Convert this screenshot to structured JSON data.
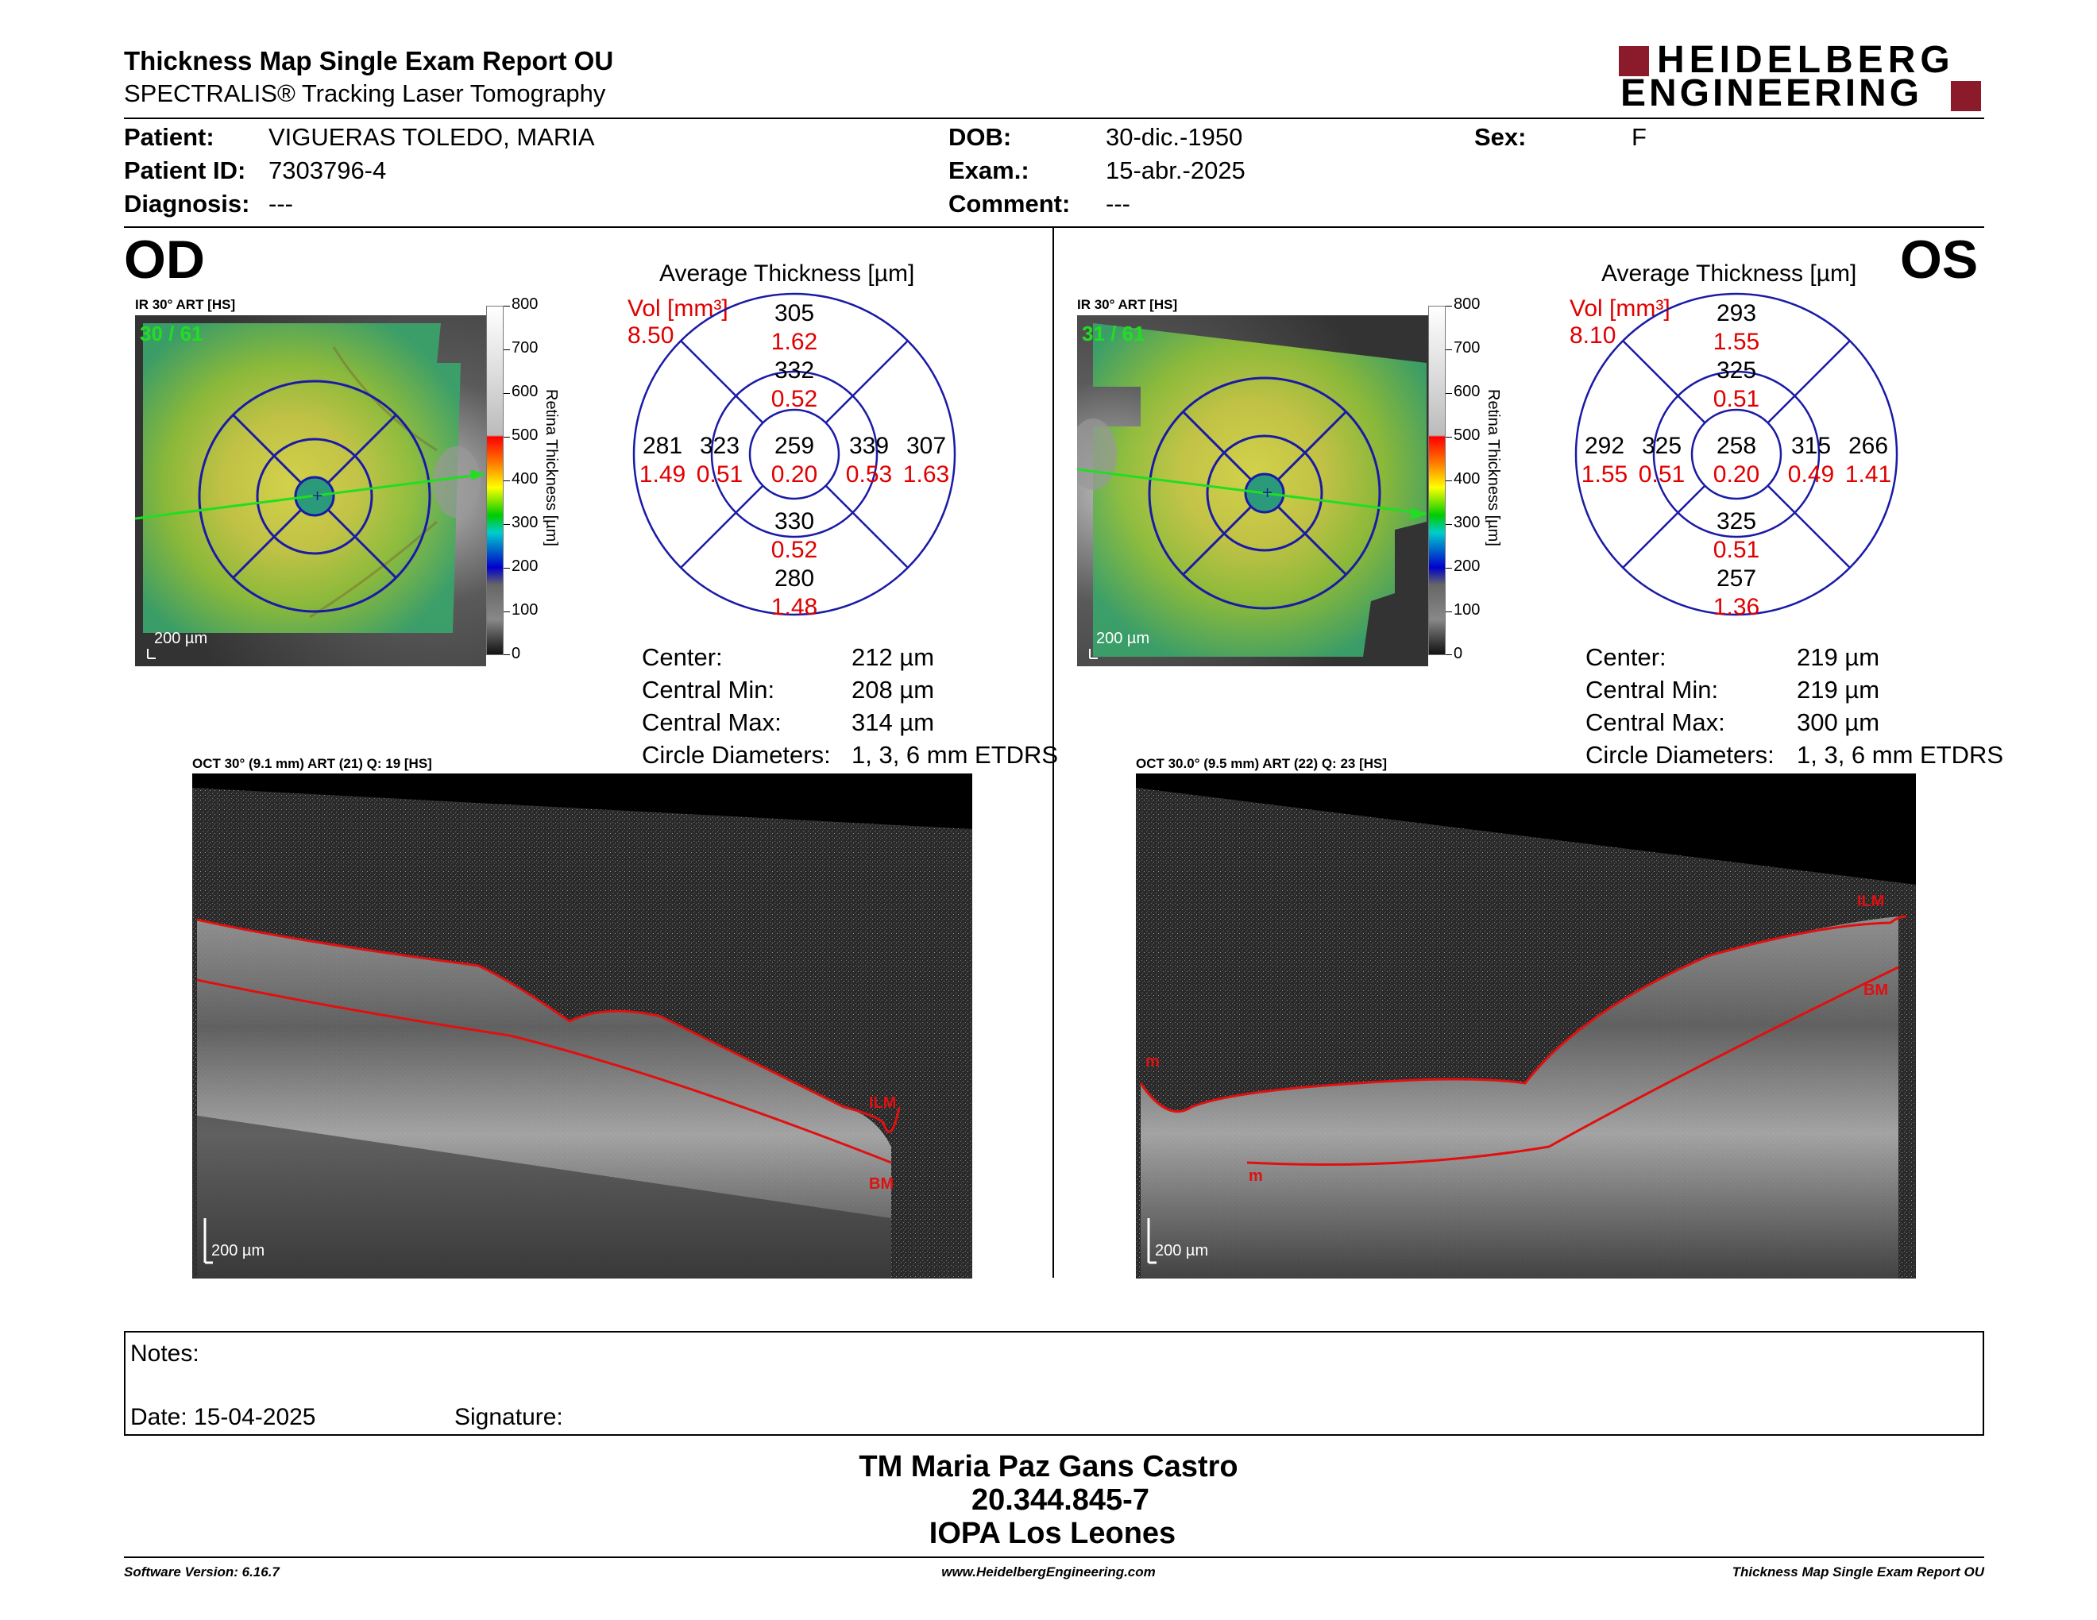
{
  "header": {
    "title": "Thickness Map Single Exam Report OU",
    "subtitle": "SPECTRALIS® Tracking Laser Tomography",
    "brand_line1": "HEIDELBERG",
    "brand_line2": "ENGINEERING",
    "brand_color": "#8b1a2b"
  },
  "patient": {
    "patient_label": "Patient:",
    "patient_value": "VIGUERAS TOLEDO, MARIA",
    "id_label": "Patient ID:",
    "id_value": "7303796-4",
    "diagnosis_label": "Diagnosis:",
    "diagnosis_value": "---",
    "dob_label": "DOB:",
    "dob_value": "30-dic.-1950",
    "exam_label": "Exam.:",
    "exam_value": "15-abr.-2025",
    "comment_label": "Comment:",
    "comment_value": "---",
    "sex_label": "Sex:",
    "sex_value": "F"
  },
  "od": {
    "eye": "OD",
    "fundus_caption": "IR 30° ART [HS]",
    "fundus_count": "30 / 61",
    "fundus_scale": "200 µm",
    "colorbar_ticks": [
      "800",
      "700",
      "600",
      "500",
      "400",
      "300",
      "200",
      "100",
      "0"
    ],
    "colorbar_label": "Retina Thickness [µm]",
    "avg_title": "Average Thickness [µm]",
    "vol_label": "Vol [mm³]",
    "vol_value": "8.50",
    "grid": {
      "outer_top": "305",
      "outer_top_vol": "1.62",
      "inner_top": "332",
      "inner_top_vol": "0.52",
      "outer_left": "281",
      "outer_left_vol": "1.49",
      "inner_left": "323",
      "inner_left_vol": "0.51",
      "center": "259",
      "center_vol": "0.20",
      "inner_right": "339",
      "inner_right_vol": "0.53",
      "outer_right": "307",
      "outer_right_vol": "1.63",
      "inner_bottom": "330",
      "inner_bottom_vol": "0.52",
      "outer_bottom": "280",
      "outer_bottom_vol": "1.48"
    },
    "center_label": "Center:",
    "center_value": "212 µm",
    "cmin_label": "Central Min:",
    "cmin_value": "208 µm",
    "cmax_label": "Central Max:",
    "cmax_value": "314 µm",
    "diam_label": "Circle Diameters:",
    "diam_value": "1, 3, 6 mm ETDRS",
    "oct_caption": "OCT 30° (9.1 mm) ART (21) Q: 19 [HS]",
    "oct_scale": "200 µm",
    "oct_ilm": "ILM",
    "oct_bm": "BM"
  },
  "os": {
    "eye": "OS",
    "fundus_caption": "IR 30° ART [HS]",
    "fundus_count": "31 / 61",
    "fundus_scale": "200 µm",
    "colorbar_ticks": [
      "800",
      "700",
      "600",
      "500",
      "400",
      "300",
      "200",
      "100",
      "0"
    ],
    "colorbar_label": "Retina Thickness [µm]",
    "avg_title": "Average Thickness [µm]",
    "vol_label": "Vol [mm³]",
    "vol_value": "8.10",
    "grid": {
      "outer_top": "293",
      "outer_top_vol": "1.55",
      "inner_top": "325",
      "inner_top_vol": "0.51",
      "outer_left": "292",
      "outer_left_vol": "1.55",
      "inner_left": "325",
      "inner_left_vol": "0.51",
      "center": "258",
      "center_vol": "0.20",
      "inner_right": "315",
      "inner_right_vol": "0.49",
      "outer_right": "266",
      "outer_right_vol": "1.41",
      "inner_bottom": "325",
      "inner_bottom_vol": "0.51",
      "outer_bottom": "257",
      "outer_bottom_vol": "1.36"
    },
    "center_label": "Center:",
    "center_value": "219 µm",
    "cmin_label": "Central Min:",
    "cmin_value": "219 µm",
    "cmax_label": "Central Max:",
    "cmax_value": "300 µm",
    "diam_label": "Circle Diameters:",
    "diam_value": "1, 3, 6 mm ETDRS",
    "oct_caption": "OCT 30.0° (9.5 mm) ART (22) Q: 23 [HS]",
    "oct_scale": "200 µm",
    "oct_ilm": "ILM",
    "oct_bm": "BM",
    "oct_m1": "m",
    "oct_m2": "m"
  },
  "notes": {
    "notes_label": "Notes:",
    "date_label": "Date: 15-04-2025",
    "signature_label": "Signature:"
  },
  "signature_block": {
    "name": "TM Maria Paz Gans Castro",
    "rut": "20.344.845-7",
    "institution": "IOPA Los Leones"
  },
  "footer": {
    "software": "Software Version: 6.16.7",
    "website": "www.HeidelbergEngineering.com",
    "report": "Thickness Map Single Exam Report OU"
  },
  "colors": {
    "grid_blue": "#1a1aa6",
    "volume_red": "#e00000",
    "layer_red": "#e01010",
    "count_green": "#22dd22"
  }
}
